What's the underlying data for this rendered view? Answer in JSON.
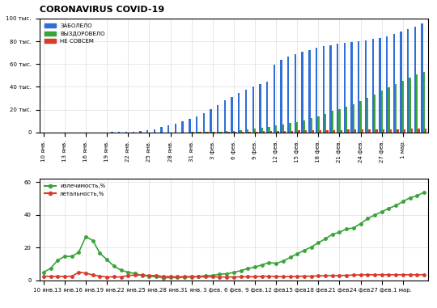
{
  "chart_data": [
    {
      "type": "bar",
      "title": "CORONAVIRUS COVID-19",
      "categories": [
        "10 янв.",
        null,
        null,
        "13 янв.",
        null,
        null,
        "16 янв.",
        null,
        null,
        "19 янв.",
        null,
        null,
        "22 янв.",
        null,
        null,
        "25 янв.",
        null,
        null,
        "28 янв.",
        null,
        null,
        "31 янв.",
        null,
        null,
        "3 фев.",
        null,
        null,
        "6 фев.",
        null,
        null,
        "9 фев.",
        null,
        null,
        "12 фев.",
        null,
        null,
        "15 фев.",
        null,
        null,
        "18 фев.",
        null,
        null,
        "21 фев.",
        null,
        null,
        "24 фев.",
        null,
        null,
        "27 фев.",
        null,
        null,
        "1 мар.",
        null,
        null,
        null
      ],
      "series": [
        {
          "name": "ЗАБОЛЕЛО",
          "color": "#2f6fd6",
          "values": [
            41,
            41,
            41,
            41,
            41,
            41,
            45,
            62,
            121,
            198,
            291,
            440,
            571,
            830,
            1287,
            1975,
            2744,
            4515,
            5974,
            7711,
            9692,
            11791,
            14380,
            17205,
            20438,
            24324,
            28018,
            31161,
            34546,
            37198,
            40171,
            42638,
            44653,
            59804,
            63851,
            66492,
            68500,
            70548,
            72436,
            74185,
            75700,
            76677,
            77673,
            78651,
            79205,
            80087,
            80828,
            81820,
            83112,
            84615,
            86604,
            88585,
            90443,
            93016,
            95314
          ]
        },
        {
          "name": "ВЫЗДОРОВЕЛО",
          "color": "#3aa43a",
          "values": [
            2,
            3,
            5,
            6,
            6,
            7,
            12,
            15,
            20,
            25,
            25,
            27,
            28,
            34,
            38,
            49,
            58,
            63,
            103,
            124,
            171,
            243,
            328,
            475,
            630,
            892,
            1124,
            1487,
            2050,
            2649,
            3281,
            3996,
            4740,
            5911,
            6723,
            8096,
            9419,
            10844,
            12552,
            14376,
            16155,
            18890,
            20793,
            22907,
            24990,
            27700,
            30384,
            33277,
            36711,
            39782,
            42716,
            45602,
            48228,
            50735,
            53358
          ]
        },
        {
          "name": "НЕ СОВСЕМ",
          "color": "#d93a2b",
          "values": [
            1,
            1,
            1,
            1,
            1,
            2,
            2,
            2,
            3,
            3,
            6,
            9,
            17,
            25,
            41,
            56,
            80,
            106,
            132,
            170,
            213,
            259,
            304,
            362,
            426,
            492,
            565,
            638,
            724,
            813,
            910,
            1018,
            1115,
            1261,
            1383,
            1526,
            1669,
            1775,
            1873,
            2009,
            2126,
            2247,
            2360,
            2460,
            2618,
            2699,
            2763,
            2800,
            2858,
            2923,
            2977,
            3050,
            3117,
            3202,
            3285
          ]
        }
      ],
      "ylim": [
        0,
        100000
      ],
      "yticks": [
        0,
        {
          "value": 20000,
          "label": "20 тыс."
        },
        {
          "value": 40000,
          "label": "40 тыс."
        },
        {
          "value": 60000,
          "label": "60 тыс."
        },
        {
          "value": 80000,
          "label": "80 тыс."
        },
        {
          "value": 100000,
          "label": "100 тыс."
        }
      ],
      "grid": true,
      "legend": "upper left"
    },
    {
      "type": "line",
      "categories": [
        "10 янв.",
        null,
        null,
        "13 янв.",
        null,
        null,
        "16 янв.",
        null,
        null,
        "19 янв.",
        null,
        null,
        "22 янв.",
        null,
        null,
        "25 янв.",
        null,
        null,
        "28 янв.",
        null,
        null,
        "31 янв.",
        null,
        null,
        "3 фев.",
        null,
        null,
        "6 фев.",
        null,
        null,
        "9 фев.",
        null,
        null,
        "12 фев.",
        null,
        null,
        "15 фев.",
        null,
        null,
        "18 фев.",
        null,
        null,
        "21 фев.",
        null,
        null,
        "24 фев.",
        null,
        null,
        "27 фев.",
        null,
        null,
        "1 мар.",
        null,
        null,
        null
      ],
      "series": [
        {
          "name": "излечимость,%",
          "color": "#3aa43a",
          "marker": "circle",
          "values": [
            4.9,
            7.3,
            12.2,
            14.6,
            14.6,
            17.1,
            26.7,
            24.2,
            16.5,
            12.6,
            8.6,
            6.1,
            4.9,
            4.1,
            2.9,
            2.5,
            2.1,
            1.4,
            1.7,
            1.6,
            1.8,
            2.0,
            2.3,
            2.8,
            3.0,
            3.7,
            4.0,
            4.8,
            5.9,
            7.2,
            8.1,
            9.4,
            10.8,
            10.3,
            11.7,
            14.0,
            16.1,
            18.3,
            20.3,
            22.9,
            25.3,
            28.1,
            29.2,
            31.4,
            31.9,
            34.6,
            37.6,
            39.9,
            41.7,
            43.9,
            45.6,
            48.0,
            50.4,
            51.5,
            53.7
          ]
        },
        {
          "name": "летальность,%",
          "color": "#d93a2b",
          "marker": "circle",
          "values": [
            2.4,
            2.4,
            2.4,
            2.4,
            2.4,
            4.9,
            4.4,
            3.2,
            2.5,
            2.0,
            2.1,
            2.0,
            3.0,
            3.1,
            3.2,
            2.9,
            2.9,
            2.3,
            2.2,
            2.1,
            2.2,
            2.2,
            2.1,
            2.1,
            2.1,
            2.0,
            2.0,
            2.0,
            2.1,
            2.2,
            2.2,
            2.4,
            2.5,
            2.3,
            2.2,
            2.3,
            2.4,
            2.5,
            2.5,
            2.7,
            2.8,
            2.9,
            2.9,
            3.0,
            3.2,
            3.3,
            3.4,
            3.4,
            3.4,
            3.4,
            3.4,
            3.4,
            3.4,
            3.4,
            3.4
          ]
        }
      ],
      "ylim": [
        0,
        62
      ],
      "yticks": [
        0,
        20,
        40,
        60
      ],
      "grid": true,
      "legend": "upper left"
    }
  ]
}
